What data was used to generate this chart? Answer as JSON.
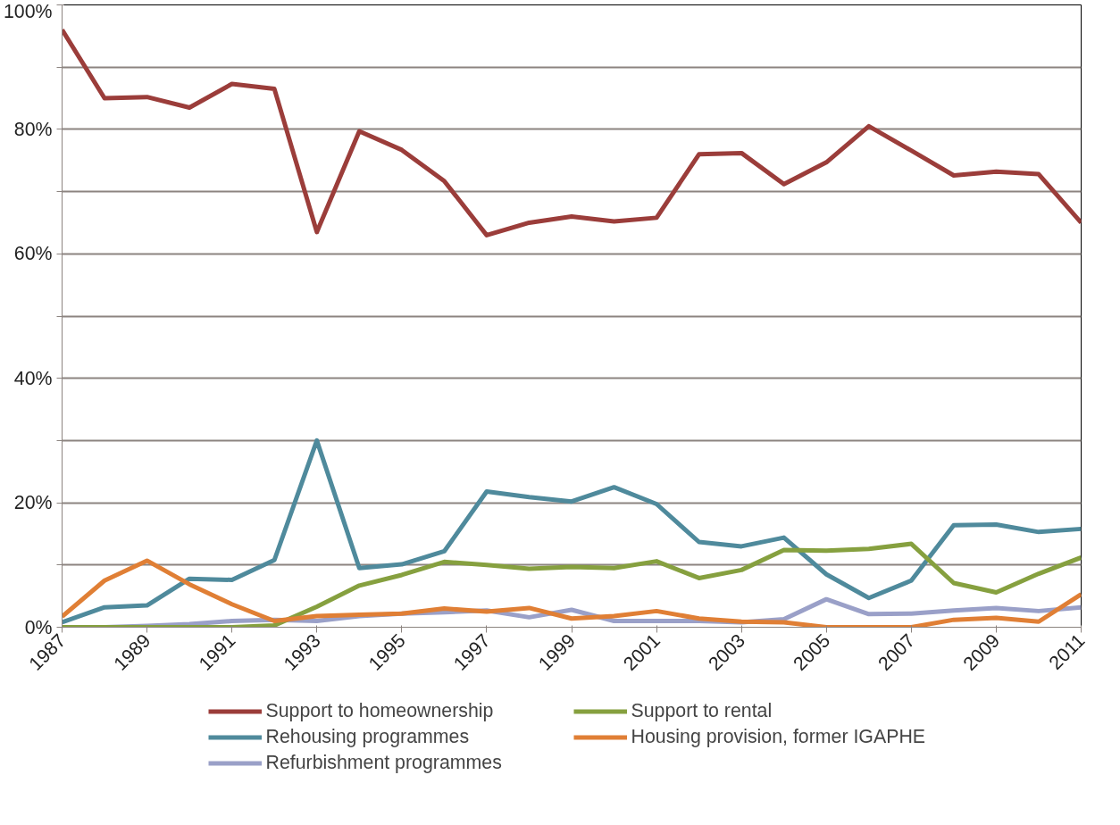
{
  "chart_data": {
    "type": "line",
    "x": [
      1987,
      1988,
      1989,
      1990,
      1991,
      1992,
      1993,
      1994,
      1995,
      1996,
      1997,
      1998,
      1999,
      2000,
      2001,
      2002,
      2003,
      2004,
      2005,
      2006,
      2007,
      2008,
      2009,
      2010,
      2011
    ],
    "series": [
      {
        "name": "Support to homeownership",
        "color": "#9b3d3a",
        "values": [
          96,
          85,
          85.2,
          83.5,
          87.3,
          86.5,
          63.5,
          79.7,
          76.7,
          71.7,
          63,
          65,
          66,
          65.2,
          65.8,
          76,
          76.2,
          71.2,
          74.7,
          80.5,
          76.6,
          72.6,
          73.2,
          72.8,
          65
        ]
      },
      {
        "name": "Rehousing programmes",
        "color": "#4f8a9c",
        "values": [
          0.8,
          3.2,
          3.5,
          7.8,
          7.6,
          10.8,
          30,
          9.5,
          10.1,
          12.2,
          21.8,
          20.9,
          20.2,
          22.5,
          19.8,
          13.7,
          13,
          14.4,
          8.5,
          4.7,
          7.5,
          16.4,
          16.5,
          15.3,
          15.8
        ]
      },
      {
        "name": "Refurbishment programmes",
        "color": "#9aa0c8",
        "values": [
          0,
          0,
          0.2,
          0.5,
          1,
          1.2,
          1,
          1.8,
          2.2,
          2.4,
          2.7,
          1.6,
          2.8,
          1,
          1,
          1,
          0.8,
          1.3,
          4.5,
          2.1,
          2.2,
          2.7,
          3.1,
          2.6,
          3.2
        ]
      },
      {
        "name": "Support to rental",
        "color": "#86a03f",
        "values": [
          0,
          0,
          0,
          0,
          0,
          0.3,
          3.3,
          6.7,
          8.4,
          10.5,
          10,
          9.4,
          9.7,
          9.5,
          10.6,
          7.9,
          9.2,
          12.4,
          12.3,
          12.6,
          13.4,
          7.1,
          5.6,
          8.6,
          11.2
        ]
      },
      {
        "name": "Housing provision, former IGAPHE",
        "color": "#e07f35",
        "values": [
          1.7,
          7.5,
          10.7,
          6.9,
          3.7,
          1,
          1.8,
          2,
          2.2,
          3,
          2.5,
          3.1,
          1.4,
          1.8,
          2.6,
          1.4,
          0.9,
          0.8,
          0,
          0,
          0,
          1.2,
          1.5,
          0.9,
          5.3
        ]
      }
    ],
    "xlim": [
      1987,
      2011
    ],
    "xticks": [
      1987,
      1989,
      1991,
      1993,
      1995,
      1997,
      1999,
      2001,
      2003,
      2005,
      2007,
      2009,
      2011
    ],
    "ylim": [
      0,
      100
    ],
    "yticks": [
      {
        "value": 0,
        "label": "0%"
      },
      {
        "value": 10,
        "label": null
      },
      {
        "value": 20,
        "label": "20%"
      },
      {
        "value": 30,
        "label": null
      },
      {
        "value": 40,
        "label": "40%"
      },
      {
        "value": 50,
        "label": null
      },
      {
        "value": 60,
        "label": "60%"
      },
      {
        "value": 70,
        "label": null
      },
      {
        "value": 80,
        "label": "80%"
      },
      {
        "value": 90,
        "label": null
      },
      {
        "value": 100,
        "label": "100%"
      }
    ],
    "grid": "y",
    "legend": "bottom",
    "marker": "none",
    "line_style": "solid"
  }
}
